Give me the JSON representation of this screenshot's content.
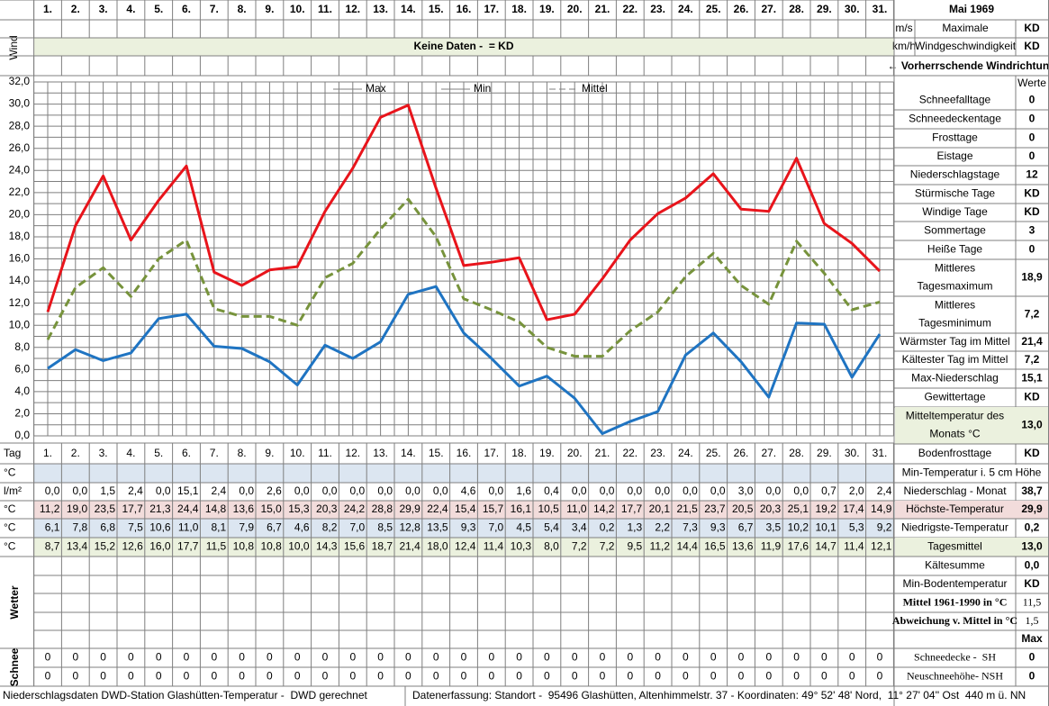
{
  "header": {
    "title": "Mai 1969"
  },
  "wind": {
    "label": "Wind",
    "unit_ms": "m/s",
    "unit_kmh": "km/h",
    "max_label": [
      "Maximale",
      "Windgeschwindigkeit"
    ],
    "value_ms": "KD",
    "value_kmh": "KD",
    "banner": "Keine Daten -  = KD",
    "direction": "← Vorherrschende Windrichtung"
  },
  "chart_data": {
    "type": "line",
    "categories": [
      "1.",
      "2.",
      "3.",
      "4.",
      "5.",
      "6.",
      "7.",
      "8.",
      "9.",
      "10.",
      "11.",
      "12.",
      "13.",
      "14.",
      "15.",
      "16.",
      "17.",
      "18.",
      "19.",
      "20.",
      "21.",
      "22.",
      "23.",
      "24.",
      "25.",
      "26.",
      "27.",
      "28.",
      "29.",
      "30.",
      "31."
    ],
    "series": [
      {
        "name": "Max",
        "color": "#e8141b",
        "line_style": "solid",
        "values": [
          11.2,
          19.0,
          23.5,
          17.7,
          21.3,
          24.4,
          14.8,
          13.6,
          15.0,
          15.3,
          20.3,
          24.2,
          28.8,
          29.9,
          22.4,
          15.4,
          15.7,
          16.1,
          10.5,
          11.0,
          14.2,
          17.7,
          20.1,
          21.5,
          23.7,
          20.5,
          20.3,
          25.1,
          19.2,
          17.4,
          14.9
        ]
      },
      {
        "name": "Min",
        "color": "#1f74c2",
        "line_style": "solid",
        "values": [
          6.1,
          7.8,
          6.8,
          7.5,
          10.6,
          11.0,
          8.1,
          7.9,
          6.7,
          4.6,
          8.2,
          7.0,
          8.5,
          12.8,
          13.5,
          9.3,
          7.0,
          4.5,
          5.4,
          3.4,
          0.2,
          1.3,
          2.2,
          7.3,
          9.3,
          6.7,
          3.5,
          10.2,
          10.1,
          5.3,
          9.2
        ]
      },
      {
        "name": "Mittel",
        "color": "#77933c",
        "line_style": "dashed",
        "values": [
          8.7,
          13.4,
          15.2,
          12.6,
          16.0,
          17.7,
          11.5,
          10.8,
          10.8,
          10.0,
          14.3,
          15.6,
          18.7,
          21.4,
          18.0,
          12.4,
          11.4,
          10.3,
          8.0,
          7.2,
          7.2,
          9.5,
          11.2,
          14.4,
          16.5,
          13.6,
          11.9,
          17.6,
          14.7,
          11.4,
          12.1
        ]
      }
    ],
    "ylim": [
      0,
      32
    ],
    "yticks": [
      {
        "value": 0,
        "label": "0,0"
      },
      {
        "value": 2,
        "label": "2,0"
      },
      {
        "value": 4,
        "label": "4,0"
      },
      {
        "value": 6,
        "label": "6,0"
      },
      {
        "value": 8,
        "label": "8,0"
      },
      {
        "value": 10,
        "label": "10,0"
      },
      {
        "value": 12,
        "label": "12,0"
      },
      {
        "value": 14,
        "label": "14,0"
      },
      {
        "value": 16,
        "label": "16,0"
      },
      {
        "value": 18,
        "label": "18,0"
      },
      {
        "value": 20,
        "label": "20,0"
      },
      {
        "value": 22,
        "label": "22,0"
      },
      {
        "value": 24,
        "label": "24,0"
      },
      {
        "value": 26,
        "label": "26,0"
      },
      {
        "value": 28,
        "label": "28,0"
      },
      {
        "value": 30,
        "label": "30,0"
      },
      {
        "value": 32,
        "label": "32,0"
      }
    ],
    "grid": true,
    "legend": "top"
  },
  "table": {
    "tag_label": "Tag",
    "rows": [
      {
        "unit": "°C"
      },
      {
        "unit": "l/m²",
        "values": [
          "0,0",
          "0,0",
          "1,5",
          "2,4",
          "0,0",
          "15,1",
          "2,4",
          "0,0",
          "2,6",
          "0,0",
          "0,0",
          "0,0",
          "0,0",
          "0,0",
          "0,0",
          "4,6",
          "0,0",
          "1,6",
          "0,4",
          "0,0",
          "0,0",
          "0,0",
          "0,0",
          "0,0",
          "0,0",
          "3,0",
          "0,0",
          "0,0",
          "0,7",
          "2,0",
          "2,4"
        ]
      },
      {
        "unit": "°C",
        "values": [
          "11,2",
          "19,0",
          "23,5",
          "17,7",
          "21,3",
          "24,4",
          "14,8",
          "13,6",
          "15,0",
          "15,3",
          "20,3",
          "24,2",
          "28,8",
          "29,9",
          "22,4",
          "15,4",
          "15,7",
          "16,1",
          "10,5",
          "11,0",
          "14,2",
          "17,7",
          "20,1",
          "21,5",
          "23,7",
          "20,5",
          "20,3",
          "25,1",
          "19,2",
          "17,4",
          "14,9"
        ]
      },
      {
        "unit": "°C",
        "values": [
          "6,1",
          "7,8",
          "6,8",
          "7,5",
          "10,6",
          "11,0",
          "8,1",
          "7,9",
          "6,7",
          "4,6",
          "8,2",
          "7,0",
          "8,5",
          "12,8",
          "13,5",
          "9,3",
          "7,0",
          "4,5",
          "5,4",
          "3,4",
          "0,2",
          "1,3",
          "2,2",
          "7,3",
          "9,3",
          "6,7",
          "3,5",
          "10,2",
          "10,1",
          "5,3",
          "9,2"
        ]
      },
      {
        "unit": "°C",
        "values": [
          "8,7",
          "13,4",
          "15,2",
          "12,6",
          "16,0",
          "17,7",
          "11,5",
          "10,8",
          "10,8",
          "10,0",
          "14,3",
          "15,6",
          "18,7",
          "21,4",
          "18,0",
          "12,4",
          "11,4",
          "10,3",
          "8,0",
          "7,2",
          "7,2",
          "9,5",
          "11,2",
          "14,4",
          "16,5",
          "13,6",
          "11,9",
          "17,6",
          "14,7",
          "11,4",
          "12,1"
        ]
      }
    ],
    "weather_label": "Wetter",
    "snow_label": "Schnee",
    "snow_rows": [
      [
        "0",
        "0",
        "0",
        "0",
        "0",
        "0",
        "0",
        "0",
        "0",
        "0",
        "0",
        "0",
        "0",
        "0",
        "0",
        "0",
        "0",
        "0",
        "0",
        "0",
        "0",
        "0",
        "0",
        "0",
        "0",
        "0",
        "0",
        "0",
        "0",
        "0",
        "0"
      ],
      [
        "0",
        "0",
        "0",
        "0",
        "0",
        "0",
        "0",
        "0",
        "0",
        "0",
        "0",
        "0",
        "0",
        "0",
        "0",
        "0",
        "0",
        "0",
        "0",
        "0",
        "0",
        "0",
        "0",
        "0",
        "0",
        "0",
        "0",
        "0",
        "0",
        "0",
        "0"
      ]
    ]
  },
  "panel": {
    "header": "Werte",
    "rows": [
      {
        "label": "Schneefalltage",
        "value": "0"
      },
      {
        "label": "Schneedeckentage",
        "value": "0"
      },
      {
        "label": "Frosttage",
        "value": "0"
      },
      {
        "label": "Eistage",
        "value": "0"
      },
      {
        "label": "Niederschlagstage",
        "value": "12"
      },
      {
        "label": "Stürmische Tage",
        "value": "KD"
      },
      {
        "label": "Windige Tage",
        "value": "KD"
      },
      {
        "label": "Sommertage",
        "value": "3"
      },
      {
        "label": "Heiße Tage",
        "value": "0"
      },
      {
        "label": [
          "Mittleres",
          "Tagesmaximum"
        ],
        "value": "18,9"
      },
      {
        "label": [
          "Mittleres",
          "Tagesminimum"
        ],
        "value": "7,2"
      },
      {
        "label": "Wärmster Tag im Mittel",
        "value": "21,4"
      },
      {
        "label": "Kältester Tag im Mittel",
        "value": "7,2"
      },
      {
        "label": "Max-Niederschlag",
        "value": "15,1"
      },
      {
        "label": "Gewittertage",
        "value": "KD"
      },
      {
        "label": [
          "Mitteltemperatur des",
          "Monats °C"
        ],
        "value": "13,0"
      },
      {
        "label": "Bodenfrosttage",
        "value": "KD"
      },
      {
        "label": "Min-Temperatur i. 5 cm Höhe"
      },
      {
        "label": "Niederschlag - Monat",
        "value": "38,7"
      },
      {
        "label": "Höchste-Temperatur",
        "value": "29,9"
      },
      {
        "label": "Niedrigste-Temperatur",
        "value": "0,2"
      },
      {
        "label": "Tagesmittel",
        "value": "13,0"
      },
      {
        "label": "Kältesumme",
        "value": "0,0"
      },
      {
        "label": "Min-Bodentemperatur",
        "value": "KD"
      },
      {
        "label": "Mittel 1961-1990 in °C",
        "value": "11,5"
      },
      {
        "label": "Abweichung v. Mittel in °C",
        "value": "1,5"
      },
      {
        "value": "Max"
      },
      {
        "label": "Schneedecke -  SH",
        "value": "0"
      },
      {
        "label": "Neuschneehöhe- NSH",
        "value": "0"
      }
    ]
  },
  "footer": {
    "left": "Niederschlagsdaten DWD-Station Glashütten-Temperatur -  DWD gerechnet",
    "right": "Datenerfassung: Standort -  95496 Glashütten, Altenhimmelstr. 37 - Koordinaten: 49° 52' 48' Nord,  11° 27' 04'' Ost  440 m ü. NN"
  }
}
